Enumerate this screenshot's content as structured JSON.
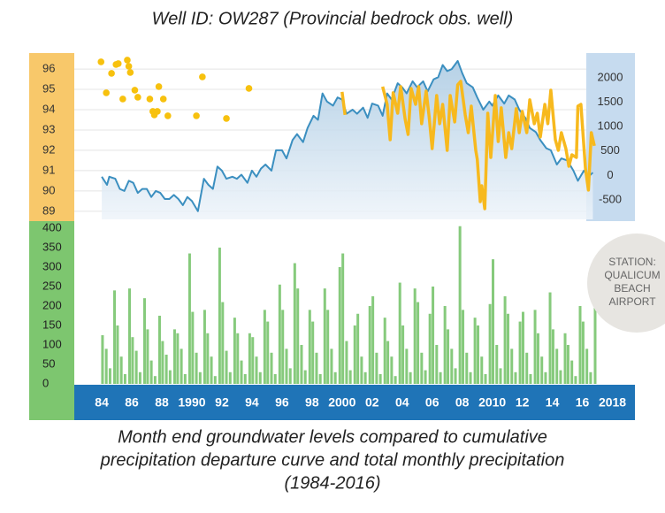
{
  "title": "Well ID: OW287  (Provincial bedrock obs. well)",
  "caption": [
    "Month end groundwater levels compared to cumulative",
    "precipitation departure curve and total monthly precipitation",
    "(1984-2016)"
  ],
  "station_label": [
    "STATION:",
    "QUALICUM",
    "BEACH",
    "AIRPORT"
  ],
  "chart_data": [
    {
      "type": "line",
      "grid": true,
      "xlim": [
        1982.17,
        2019.5
      ],
      "ylim": [
        88.6,
        96.7
      ],
      "yticks": [
        89,
        90,
        91,
        92,
        93,
        94,
        95,
        96
      ],
      "y2lim": [
        -900,
        2470
      ],
      "y2ticks": [
        -500,
        0,
        500,
        1000,
        1500,
        2000
      ],
      "series": [
        {
          "type": "line",
          "color": "#3b8fc0",
          "x": [
            1984.0,
            1984.35,
            1984.5,
            1984.9,
            1985.2,
            1985.5,
            1985.8,
            1986.1,
            1986.4,
            1986.7,
            1987.0,
            1987.3,
            1987.6,
            1987.9,
            1988.2,
            1988.5,
            1988.8,
            1989.1,
            1989.4,
            1989.7,
            1990.0,
            1990.4,
            1990.8,
            1991.1,
            1991.4,
            1991.7,
            1992.0,
            1992.3,
            1992.7,
            1993.0,
            1993.3,
            1993.7,
            1994.0,
            1994.3,
            1994.6,
            1994.9,
            1995.3,
            1995.6,
            1996.0,
            1996.3,
            1996.7,
            1997.0,
            1997.4,
            1997.7,
            1998.1,
            1998.4,
            1998.7,
            1999.0,
            1999.4,
            1999.7,
            2000.0,
            2000.3,
            2000.7,
            2001.0,
            2001.4,
            2001.7,
            2002.0,
            2002.4,
            2002.7,
            2003.0,
            2003.3,
            2003.7,
            2004.0,
            2004.3,
            2004.7,
            2005.0,
            2005.4,
            2005.7,
            2006.1,
            2006.4,
            2006.7,
            2007.0,
            2007.3,
            2007.7,
            2008.0,
            2008.3,
            2008.7,
            2009.0,
            2009.4,
            2009.8,
            2010.0,
            2010.4,
            2010.8,
            2011.1,
            2011.5,
            2011.8,
            2012.2,
            2012.5,
            2012.9,
            2013.2,
            2013.6,
            2013.9,
            2014.3,
            2014.6,
            2015.0,
            2015.4,
            2015.7,
            2016.1,
            2016.4,
            2016.7
          ],
          "values": [
            90.7,
            90.3,
            90.7,
            90.6,
            90.1,
            90.0,
            90.5,
            90.4,
            89.9,
            90.1,
            90.1,
            89.7,
            90.0,
            89.9,
            89.6,
            89.6,
            89.8,
            89.6,
            89.3,
            89.7,
            89.5,
            89.0,
            90.6,
            90.3,
            90.1,
            91.2,
            91.0,
            90.6,
            90.7,
            90.6,
            90.8,
            90.4,
            91.0,
            90.7,
            91.1,
            91.3,
            91.0,
            92.0,
            92.0,
            91.6,
            92.5,
            92.8,
            92.4,
            93.1,
            93.7,
            93.5,
            94.8,
            94.4,
            94.2,
            94.6,
            94.5,
            93.8,
            94.0,
            93.8,
            94.1,
            93.6,
            94.3,
            94.2,
            93.7,
            94.8,
            94.5,
            95.3,
            95.1,
            94.8,
            95.4,
            95.1,
            95.4,
            94.9,
            95.5,
            95.6,
            96.2,
            95.9,
            96.0,
            96.4,
            95.8,
            95.3,
            95.1,
            94.6,
            94.0,
            94.4,
            94.2,
            94.7,
            94.3,
            94.7,
            94.5,
            94.0,
            93.6,
            93.1,
            92.9,
            92.5,
            92.1,
            92.0,
            91.3,
            91.6,
            91.5,
            91.0,
            90.5,
            91.0,
            90.7,
            90.9
          ]
        },
        {
          "type": "line",
          "axis": "y2",
          "color": "#f7b91e",
          "x": [
            2000.0,
            2000.2,
            2001.5,
            2002.7,
            2003.0,
            2003.2,
            2003.4,
            2003.7,
            2003.9,
            2004.2,
            2004.4,
            2004.6,
            2004.9,
            2005.1,
            2005.3,
            2005.6,
            2005.8,
            2006.0,
            2006.3,
            2006.5,
            2006.7,
            2007.0,
            2007.2,
            2007.5,
            2007.7,
            2007.9,
            2008.2,
            2008.4,
            2008.6,
            2008.9,
            2009.0,
            2009.2,
            2009.3,
            2009.5,
            2009.7,
            2009.9,
            2010.2,
            2010.4,
            2010.6,
            2010.9,
            2011.1,
            2011.3,
            2011.6,
            2011.8,
            2012.0,
            2012.3,
            2012.5,
            2012.8,
            2013.0,
            2013.2,
            2013.5,
            2013.7,
            2013.9,
            2014.2,
            2014.4,
            2014.6,
            2014.9,
            2015.1,
            2015.3,
            2015.6,
            2015.7,
            2015.9,
            2016.2,
            2016.4,
            2016.6,
            2016.8
          ],
          "values": [
            1710,
            1239,
            null,
            1819,
            1456,
            731,
            1692,
            1275,
            1819,
            1148,
            840,
            1782,
            1456,
            1819,
            1058,
            1728,
            1203,
            550,
            1637,
            1058,
            1456,
            514,
            1637,
            1094,
            1855,
            1927,
            1239,
            876,
            1420,
            514,
            333,
            -537,
            -211,
            -682,
            1275,
            369,
            1637,
            695,
            1384,
            369,
            876,
            550,
            1366,
            876,
            1311,
            876,
            1547,
            1058,
            1275,
            786,
            1456,
            1058,
            1746,
            731,
            514,
            876,
            550,
            188,
            423,
            369,
            1420,
            1456,
            152,
            -301,
            876,
            605
          ]
        },
        {
          "type": "scatter",
          "axis": "y2",
          "color": "#f7c10e",
          "x": [
            1983.95,
            1984.3,
            1984.65,
            1984.95,
            1985.1,
            1985.7,
            1985.8,
            1985.9,
            1986.2,
            1986.4,
            1985.4,
            1987.2,
            1987.4,
            1987.5,
            1987.7,
            1987.8,
            1988.1,
            1988.4,
            1990.3,
            1990.7,
            1992.3,
            1993.8
          ],
          "values": [
            2326,
            1692,
            2090,
            2272,
            2290,
            2362,
            2235,
            2109,
            1746,
            1601,
            1565,
            1565,
            1311,
            1239,
            1311,
            1819,
            1565,
            1221,
            1221,
            2018,
            1166,
            1782
          ]
        }
      ]
    },
    {
      "type": "bar",
      "color": "#79c46e",
      "xlim": [
        1982.17,
        2019.5
      ],
      "ylim": [
        0,
        418
      ],
      "yticks": [
        0,
        50,
        100,
        150,
        200,
        250,
        300,
        350,
        400
      ],
      "xticks": [
        {
          "value": 1984,
          "label": "84"
        },
        {
          "value": 1986,
          "label": "86"
        },
        {
          "value": 1988,
          "label": "88"
        },
        1990,
        {
          "value": 1992,
          "label": "92"
        },
        {
          "value": 1994,
          "label": "94"
        },
        {
          "value": 1996,
          "label": "96"
        },
        {
          "value": 1998,
          "label": "98"
        },
        2000,
        {
          "value": 2002,
          "label": "02"
        },
        {
          "value": 2004,
          "label": "04"
        },
        {
          "value": 2006,
          "label": "06"
        },
        {
          "value": 2008,
          "label": "08"
        },
        2010,
        {
          "value": 2012,
          "label": "12"
        },
        {
          "value": 2014,
          "label": "14"
        },
        {
          "value": 2016,
          "label": "16"
        },
        2018
      ],
      "x": [
        1984.05,
        1984.3,
        1984.55,
        1984.85,
        1985.05,
        1985.3,
        1985.55,
        1985.85,
        1986.05,
        1986.3,
        1986.55,
        1986.85,
        1987.05,
        1987.3,
        1987.55,
        1987.85,
        1988.05,
        1988.3,
        1988.55,
        1988.85,
        1989.05,
        1989.3,
        1989.55,
        1989.85,
        1990.05,
        1990.3,
        1990.55,
        1990.85,
        1991.05,
        1991.3,
        1991.55,
        1991.85,
        1992.05,
        1992.3,
        1992.55,
        1992.85,
        1993.05,
        1993.3,
        1993.55,
        1993.85,
        1994.05,
        1994.3,
        1994.55,
        1994.85,
        1995.05,
        1995.3,
        1995.55,
        1995.85,
        1996.05,
        1996.3,
        1996.55,
        1996.85,
        1997.05,
        1997.3,
        1997.55,
        1997.85,
        1998.05,
        1998.3,
        1998.55,
        1998.85,
        1999.05,
        1999.3,
        1999.55,
        1999.85,
        2000.05,
        2000.3,
        2000.55,
        2000.85,
        2001.05,
        2001.3,
        2001.55,
        2001.85,
        2002.05,
        2002.3,
        2002.55,
        2002.85,
        2003.05,
        2003.3,
        2003.55,
        2003.85,
        2004.05,
        2004.3,
        2004.55,
        2004.85,
        2005.05,
        2005.3,
        2005.55,
        2005.85,
        2006.05,
        2006.3,
        2006.55,
        2006.85,
        2007.05,
        2007.3,
        2007.55,
        2007.85,
        2008.05,
        2008.3,
        2008.55,
        2008.85,
        2009.05,
        2009.3,
        2009.55,
        2009.85,
        2010.05,
        2010.3,
        2010.55,
        2010.85,
        2011.05,
        2011.3,
        2011.55,
        2011.85,
        2012.05,
        2012.3,
        2012.55,
        2012.85,
        2013.05,
        2013.3,
        2013.55,
        2013.85,
        2014.05,
        2014.3,
        2014.55,
        2014.85,
        2015.05,
        2015.3,
        2015.55,
        2015.85,
        2016.05,
        2016.3,
        2016.55,
        2016.85
      ],
      "values": [
        125,
        90,
        40,
        240,
        150,
        70,
        25,
        245,
        120,
        85,
        30,
        220,
        140,
        60,
        20,
        175,
        110,
        75,
        35,
        140,
        130,
        90,
        25,
        335,
        185,
        80,
        30,
        190,
        130,
        70,
        20,
        350,
        210,
        85,
        30,
        170,
        130,
        60,
        25,
        130,
        120,
        70,
        30,
        190,
        160,
        80,
        25,
        255,
        190,
        90,
        40,
        310,
        245,
        100,
        35,
        190,
        160,
        80,
        25,
        245,
        190,
        90,
        30,
        300,
        335,
        110,
        35,
        150,
        180,
        70,
        30,
        200,
        225,
        80,
        25,
        170,
        110,
        70,
        20,
        260,
        150,
        90,
        30,
        245,
        210,
        80,
        35,
        180,
        250,
        100,
        30,
        200,
        140,
        90,
        40,
        405,
        190,
        80,
        30,
        170,
        150,
        70,
        25,
        205,
        320,
        100,
        40,
        225,
        180,
        90,
        30,
        160,
        185,
        80,
        25,
        190,
        130,
        70,
        30,
        235,
        140,
        90,
        35,
        130,
        100,
        60,
        20,
        200,
        160,
        90,
        30,
        235
      ]
    }
  ]
}
